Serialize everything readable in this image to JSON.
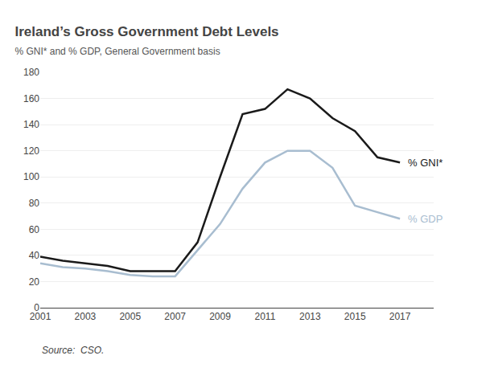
{
  "chart_data": {
    "type": "line",
    "title": "Ireland’s Gross Government Debt Levels",
    "subtitle": "% GNI* and % GDP, General Government basis",
    "annotations": [
      "Source:  CSO."
    ],
    "x": [
      2001,
      2002,
      2003,
      2004,
      2005,
      2006,
      2007,
      2008,
      2009,
      2010,
      2011,
      2012,
      2013,
      2014,
      2015,
      2016,
      2017
    ],
    "series": [
      {
        "name": "% GNI*",
        "color": "#1a1a1a",
        "values": [
          39,
          36,
          34,
          32,
          28,
          28,
          28,
          50,
          100,
          148,
          152,
          167,
          160,
          145,
          135,
          115,
          111
        ]
      },
      {
        "name": "% GDP",
        "color": "#a8bdd0",
        "values": [
          34,
          31,
          30,
          28,
          25,
          24,
          24,
          44,
          64,
          91,
          111,
          120,
          120,
          107,
          78,
          73,
          68
        ]
      }
    ],
    "xlim": [
      2001,
      2018.5
    ],
    "xticks": [
      2001,
      2003,
      2005,
      2007,
      2009,
      2011,
      2013,
      2015,
      2017
    ],
    "ylim": [
      0,
      180
    ],
    "yticks": [
      0,
      20,
      40,
      60,
      80,
      100,
      120,
      140,
      160,
      180
    ],
    "grid": true
  }
}
